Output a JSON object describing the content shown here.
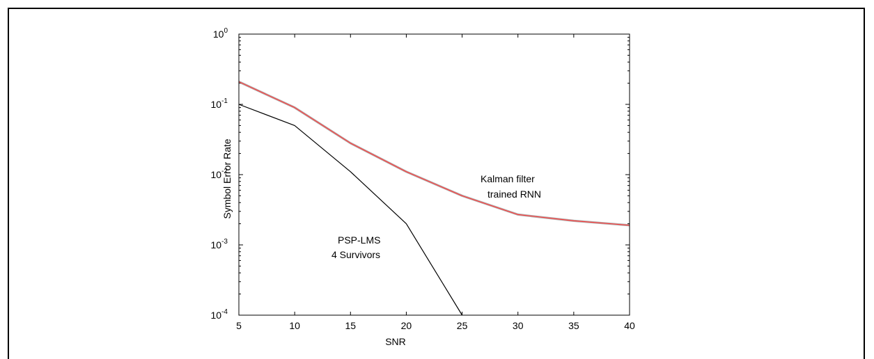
{
  "chart_data": {
    "type": "line",
    "xlabel": "SNR",
    "ylabel": "Symbol Error Rate",
    "xlim": [
      5,
      40
    ],
    "ylim": [
      0.0001,
      1
    ],
    "y_scale": "log",
    "grid": false,
    "x_ticks": [
      "5",
      "10",
      "15",
      "20",
      "25",
      "30",
      "35",
      "40"
    ],
    "y_ticks": [
      {
        "base": "10",
        "exp": "0"
      },
      {
        "base": "10",
        "exp": "-1"
      },
      {
        "base": "10",
        "exp": "-2"
      },
      {
        "base": "10",
        "exp": "-3"
      },
      {
        "base": "10",
        "exp": "-4"
      }
    ],
    "series": [
      {
        "key": "kalman",
        "color": "#ff3b3b",
        "points": [
          [
            5,
            0.21
          ],
          [
            10,
            0.09
          ],
          [
            15,
            0.028
          ],
          [
            20,
            0.011
          ],
          [
            25,
            0.005
          ],
          [
            30,
            0.0027
          ],
          [
            35,
            0.0022
          ],
          [
            40,
            0.0019
          ]
        ]
      },
      {
        "key": "psp",
        "color": "#000000",
        "points": [
          [
            5,
            0.1
          ],
          [
            10,
            0.05
          ],
          [
            15,
            0.011
          ],
          [
            20,
            0.002
          ],
          [
            25,
            0.0001
          ]
        ]
      }
    ],
    "annotations": [
      {
        "key": "kalman",
        "lines": [
          "Kalman filter",
          "trained RNN"
        ]
      },
      {
        "key": "psp",
        "lines": [
          "PSP-LMS",
          "4 Survivors"
        ]
      }
    ]
  }
}
